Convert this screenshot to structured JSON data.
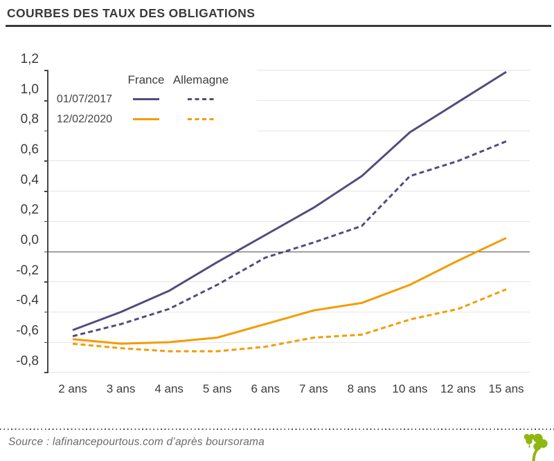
{
  "header": {
    "title": "COURBES DES TAUX DES OBLIGATIONS"
  },
  "legend": {
    "col_france": "France",
    "col_allemagne": "Allemagne",
    "rows": [
      {
        "date": "01/07/2017",
        "color": "#554a7d"
      },
      {
        "date": "12/02/2020",
        "color": "#f49b00"
      }
    ]
  },
  "footer": {
    "source": "Source : lafinancepourtous.com d’après boursorama",
    "logo": "tree-logo",
    "logo_color": "#8eb712"
  },
  "colors": {
    "purple_2017": "#554a7d",
    "orange_2020": "#f49b00",
    "grid": "#e4e4e4",
    "zero_line": "#4d4d4d",
    "text_dark": "#3a3a3c"
  },
  "chart_data": {
    "type": "line",
    "title": "COURBES DES TAUX DES OBLIGATIONS",
    "categories": [
      "2 ans",
      "3 ans",
      "4 ans",
      "5 ans",
      "6 ans",
      "7 ans",
      "8 ans",
      "10 ans",
      "12 ans",
      "15 ans"
    ],
    "y_tick_labels": [
      "1,2",
      "1,0",
      "0,8",
      "0,6",
      "0,4",
      "0,2",
      "0,0",
      "-0,2",
      "-0,4",
      "-0,6",
      "-0,8"
    ],
    "ylim": [
      -0.8,
      1.2
    ],
    "y_step": 0.2,
    "grid": "horizontal",
    "zero_line": true,
    "legend_position": "top-left",
    "series": [
      {
        "name": "France 01/07/2017",
        "country": "France",
        "date": "01/07/2017",
        "style": "solid",
        "color": "#554a7d",
        "values": [
          -0.52,
          -0.4,
          -0.26,
          -0.07,
          0.11,
          0.29,
          0.5,
          0.79,
          0.99,
          1.19
        ]
      },
      {
        "name": "Allemagne 01/07/2017",
        "country": "Allemagne",
        "date": "01/07/2017",
        "style": "dashed",
        "color": "#554a7d",
        "values": [
          -0.56,
          -0.48,
          -0.38,
          -0.22,
          -0.04,
          0.06,
          0.17,
          0.5,
          0.6,
          0.73
        ]
      },
      {
        "name": "France 12/02/2020",
        "country": "France",
        "date": "12/02/2020",
        "style": "solid",
        "color": "#f49b00",
        "values": [
          -0.58,
          -0.61,
          -0.6,
          -0.57,
          -0.48,
          -0.39,
          -0.34,
          -0.22,
          -0.06,
          0.09
        ]
      },
      {
        "name": "Allemagne 12/02/2020",
        "country": "Allemagne",
        "date": "12/02/2020",
        "style": "dashed",
        "color": "#f49b00",
        "values": [
          -0.61,
          -0.64,
          -0.66,
          -0.66,
          -0.63,
          -0.57,
          -0.55,
          -0.45,
          -0.38,
          -0.25
        ]
      }
    ]
  }
}
